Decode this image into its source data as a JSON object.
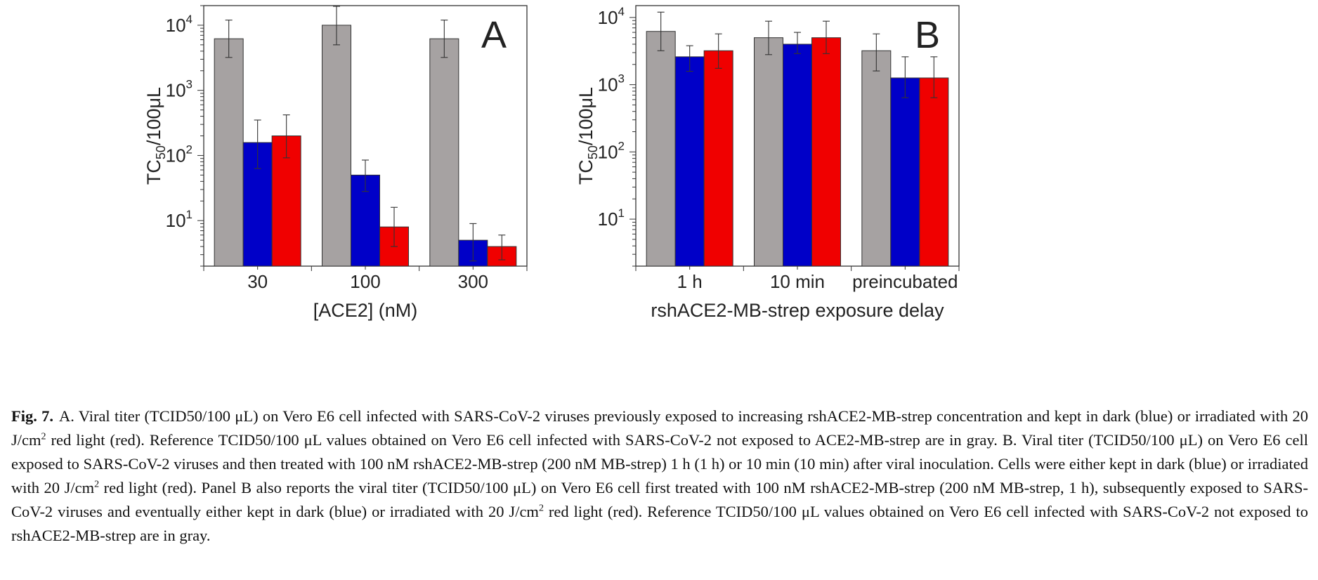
{
  "chart_data": [
    {
      "type": "bar",
      "panel_label": "A",
      "y_scale": "log",
      "ylim": [
        2,
        20000
      ],
      "ylabel_main": "TC",
      "ylabel_sub": "50",
      "ylabel_tail": "/100μL",
      "yticks": [
        {
          "base": "10",
          "exp": "1"
        },
        {
          "base": "10",
          "exp": "2"
        },
        {
          "base": "10",
          "exp": "3"
        },
        {
          "base": "10",
          "exp": "4"
        }
      ],
      "ytick_values": [
        10,
        100,
        1000,
        10000
      ],
      "xlabel": "[ACE2] (nM)",
      "categories": [
        "30",
        "100",
        "300"
      ],
      "series": [
        {
          "color": "#a6a2a2",
          "values": [
            6200,
            10000,
            6200
          ],
          "err_low": [
            3200,
            5000,
            3200
          ],
          "err_high": [
            12000,
            19500,
            12000
          ]
        },
        {
          "color": "#0000c8",
          "values": [
            158,
            50,
            5
          ],
          "err_low": [
            63,
            28,
            2.4
          ],
          "err_high": [
            350,
            85,
            9
          ]
        },
        {
          "color": "#f00000",
          "values": [
            200,
            8,
            4
          ],
          "err_low": [
            92,
            4,
            2.5
          ],
          "err_high": [
            420,
            16,
            6
          ]
        }
      ]
    },
    {
      "type": "bar",
      "panel_label": "B",
      "y_scale": "log",
      "ylim": [
        2,
        15000
      ],
      "ylabel_main": "TC",
      "ylabel_sub": "50",
      "ylabel_tail": "/100μL",
      "yticks": [
        {
          "base": "10",
          "exp": "1"
        },
        {
          "base": "10",
          "exp": "2"
        },
        {
          "base": "10",
          "exp": "3"
        },
        {
          "base": "10",
          "exp": "4"
        }
      ],
      "ytick_values": [
        10,
        100,
        1000,
        10000
      ],
      "xlabel": "rshACE2-MB-strep exposure delay",
      "categories": [
        "1 h",
        "10 min",
        "preincubated"
      ],
      "series": [
        {
          "color": "#a6a2a2",
          "values": [
            6200,
            5000,
            3200
          ],
          "err_low": [
            3200,
            2800,
            1600
          ],
          "err_high": [
            12000,
            8800,
            5700
          ]
        },
        {
          "color": "#0000c8",
          "values": [
            2600,
            4000,
            1260
          ],
          "err_low": [
            1580,
            2900,
            640
          ],
          "err_high": [
            3800,
            6000,
            2600
          ]
        },
        {
          "color": "#f00000",
          "values": [
            3200,
            5000,
            1260
          ],
          "err_low": [
            1750,
            2900,
            640
          ],
          "err_high": [
            5700,
            8800,
            2600
          ]
        }
      ]
    }
  ],
  "caption": {
    "label": "Fig. 7.",
    "segments": [
      {
        "t": "A. Viral titer (TCID50/100 μL) on Vero E6 cell infected with SARS-CoV-2 viruses previously exposed to increasing rshACE2-MB-strep concentration and kept in dark (blue) or irradiated with 20 J/cm"
      },
      {
        "sup": "2"
      },
      {
        "t": " red light (red). Reference TCID50/100 μL values obtained on Vero E6 cell infected with SARS-CoV-2 not exposed to ACE2-MB-strep are in gray. B. Viral titer (TCID50/100 μL) on Vero E6 cell exposed to SARS-CoV-2 viruses and then treated with 100 nM rshACE2-MB-strep (200 nM MB-strep) 1 h (1 h) or 10 min (10 min) after viral inoculation. Cells were either kept in dark (blue) or irradiated with 20 J/cm"
      },
      {
        "sup": "2"
      },
      {
        "t": " red light (red). Panel B also reports the viral titer (TCID50/100 μL) on Vero E6 cell first treated with 100 nM rshACE2-MB-strep (200 nM MB-strep, 1 h), subsequently exposed to SARS-CoV-2 viruses and eventually either kept in dark (blue) or irradiated with 20 J/cm"
      },
      {
        "sup": "2"
      },
      {
        "t": " red light (red). Reference TCID50/100 μL values obtained on Vero E6 cell infected with SARS-CoV-2 not exposed to rshACE2-MB-strep are in gray."
      }
    ]
  }
}
